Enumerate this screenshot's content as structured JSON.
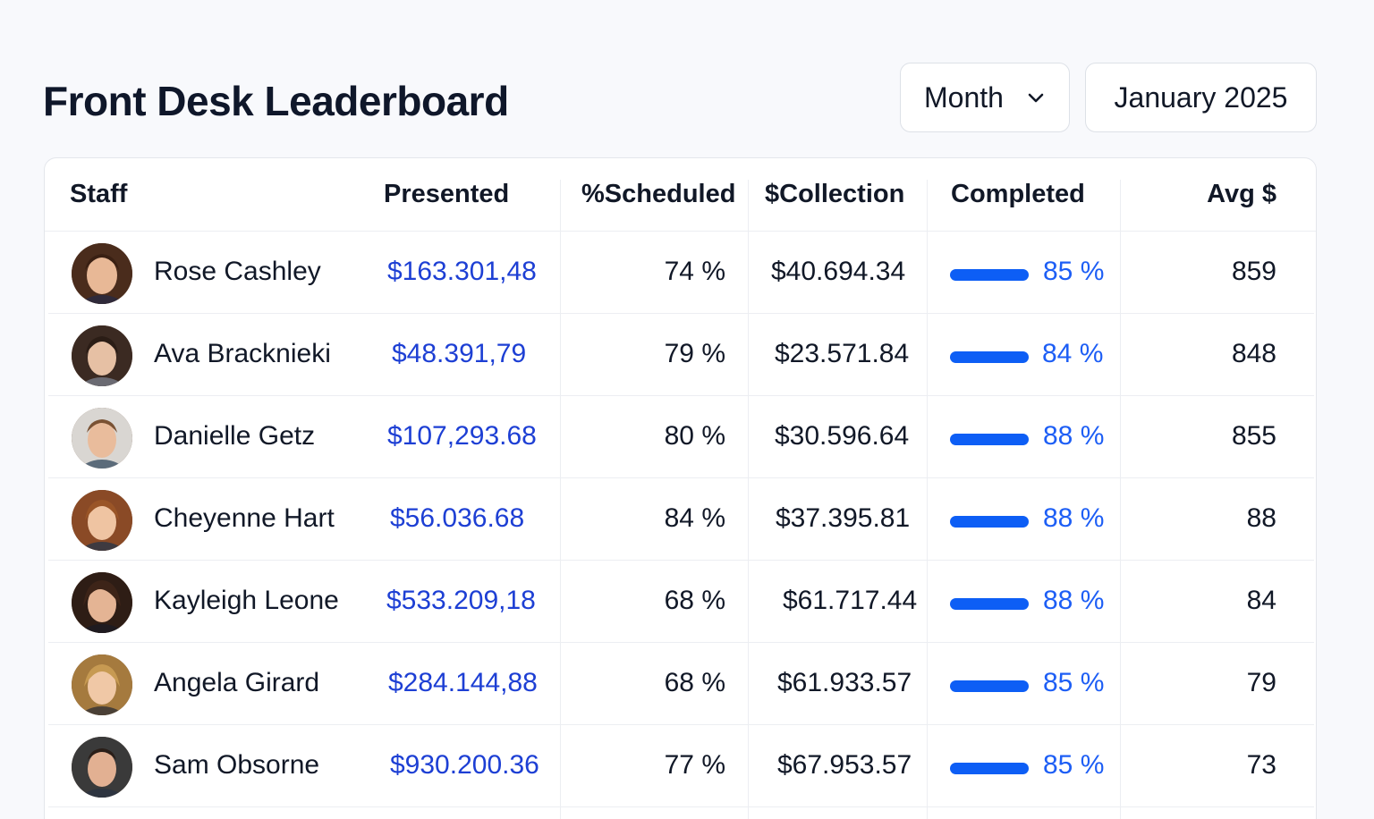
{
  "title": "Front Desk Leaderboard",
  "period": {
    "value": "Month",
    "icon": "chevron-down-icon"
  },
  "date": {
    "value": "January 2025"
  },
  "columns": {
    "staff": "Staff",
    "presented": "Presented",
    "scheduled": "%Scheduled",
    "collection": "$Collection",
    "completed": "Completed",
    "avg": "Avg $"
  },
  "colors": {
    "accent": "#0d5ef5",
    "link": "#1d3fd4",
    "text": "#111827"
  },
  "rows": [
    {
      "name": "Rose Cashley",
      "presented": "$163.301,48",
      "scheduled": "74 %",
      "collection": "$40.694.34",
      "completed": "85 %",
      "completed_value": 85,
      "avg": "859"
    },
    {
      "name": "Ava Bracknieki",
      "presented": "$48.391,79",
      "scheduled": "79 %",
      "collection": "$23.571.84",
      "completed": "84 %",
      "completed_value": 84,
      "avg": "848"
    },
    {
      "name": "Danielle Getz",
      "presented": "$107,293.68",
      "scheduled": "80 %",
      "collection": "$30.596.64",
      "completed": "88 %",
      "completed_value": 88,
      "avg": "855"
    },
    {
      "name": "Cheyenne Hart",
      "presented": "$56.036.68",
      "scheduled": "84 %",
      "collection": "$37.395.81",
      "completed": "88 %",
      "completed_value": 88,
      "avg": "88"
    },
    {
      "name": "Kayleigh Leone",
      "presented": "$533.209,18",
      "scheduled": "68 %",
      "collection": "$61.717.44",
      "completed": "88 %",
      "completed_value": 88,
      "avg": "84"
    },
    {
      "name": "Angela Girard",
      "presented": "$284.144,88",
      "scheduled": "68 %",
      "collection": "$61.933.57",
      "completed": "85 %",
      "completed_value": 85,
      "avg": "79"
    },
    {
      "name": "Sam Obsorne",
      "presented": "$930.200.36",
      "scheduled": "77 %",
      "collection": "$67.953.57",
      "completed": "85 %",
      "completed_value": 85,
      "avg": "73"
    }
  ]
}
